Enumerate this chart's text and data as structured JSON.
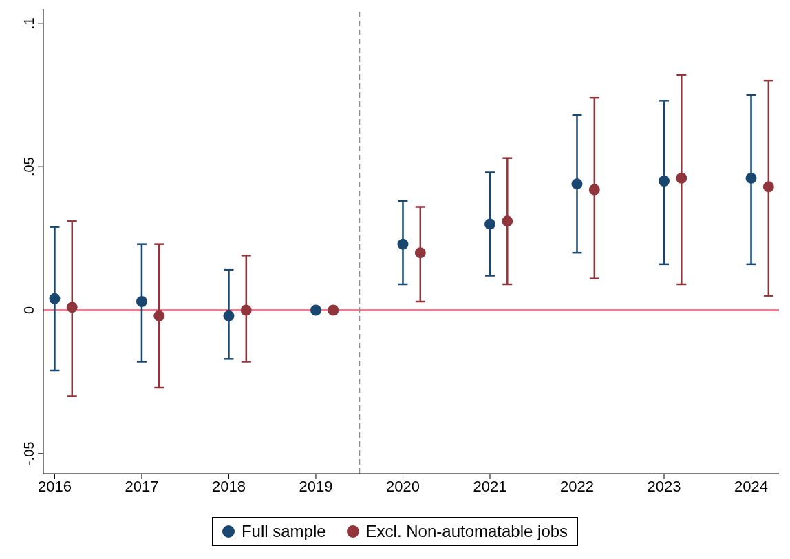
{
  "chart_data": {
    "type": "scatter",
    "xlim": [
      2015.87,
      2024.32
    ],
    "xticks": [
      2016,
      2017,
      2018,
      2019,
      2020,
      2021,
      2022,
      2023,
      2024
    ],
    "ylim": [
      -0.057,
      0.105
    ],
    "yticks": [
      {
        "value": -0.05,
        "label": "-.05"
      },
      {
        "value": 0,
        "label": "0"
      },
      {
        "value": 0.05,
        "label": ".05"
      },
      {
        "value": 0.1,
        "label": ".1"
      }
    ],
    "grid": false,
    "legend": "bottom",
    "marker": "circle",
    "ref_lines": [
      {
        "axis": "y",
        "value": 0,
        "color": "#c8102e",
        "line_style": "solid"
      },
      {
        "axis": "x",
        "value": 2019.5,
        "color": "#8c8c8c",
        "line_style": "dashed"
      }
    ],
    "series": [
      {
        "name": "Full sample",
        "color": "#1a476f",
        "x": [
          2016,
          2017,
          2018,
          2019,
          2020,
          2021,
          2022,
          2023,
          2024
        ],
        "values": [
          0.004,
          0.003,
          -0.002,
          0,
          0.023,
          0.03,
          0.044,
          0.045,
          0.046
        ],
        "errors": [
          [
            -0.021,
            0.029
          ],
          [
            -0.018,
            0.023
          ],
          [
            -0.017,
            0.014
          ],
          null,
          [
            0.009,
            0.038
          ],
          [
            0.012,
            0.048
          ],
          [
            0.02,
            0.068
          ],
          [
            0.016,
            0.073
          ],
          [
            0.016,
            0.075
          ]
        ]
      },
      {
        "name": "Excl. Non-automatable jobs",
        "color": "#90353b",
        "x": [
          2016.2,
          2017.2,
          2018.2,
          2019.2,
          2020.2,
          2021.2,
          2022.2,
          2023.2,
          2024.2
        ],
        "values": [
          0.001,
          -0.002,
          0,
          0,
          0.02,
          0.031,
          0.042,
          0.046,
          0.043
        ],
        "errors": [
          [
            -0.03,
            0.031
          ],
          [
            -0.027,
            0.023
          ],
          [
            -0.018,
            0.019
          ],
          null,
          [
            0.003,
            0.036
          ],
          [
            0.009,
            0.053
          ],
          [
            0.011,
            0.074
          ],
          [
            0.009,
            0.082
          ],
          [
            0.005,
            0.08
          ]
        ]
      }
    ]
  }
}
